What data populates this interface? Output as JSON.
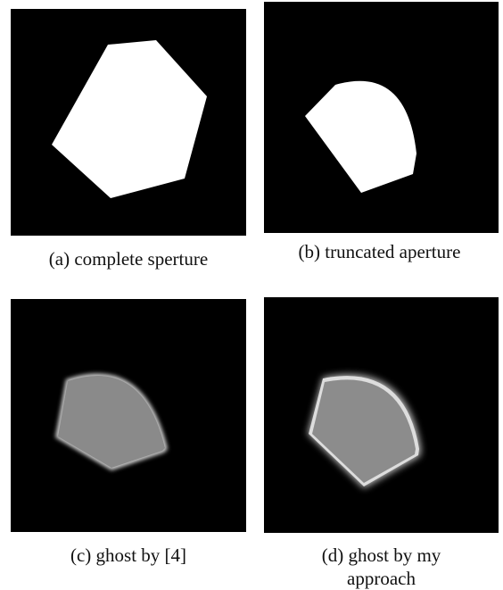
{
  "figures": [
    {
      "caption": "(a) complete sperture"
    },
    {
      "caption": "(b) truncated aperture"
    },
    {
      "caption": "(c) ghost by [4]"
    },
    {
      "caption": "(d) ghost by my approach"
    }
  ]
}
